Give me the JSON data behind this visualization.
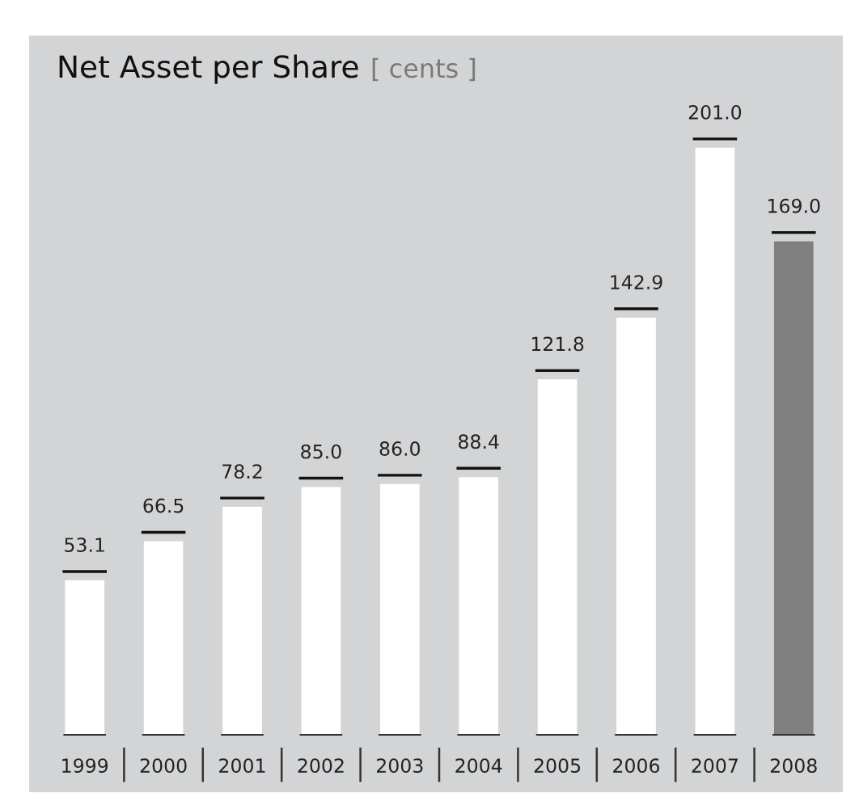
{
  "chart_data": {
    "type": "bar",
    "title": "Net Asset per Share",
    "subtitle": "[ cents ]",
    "categories": [
      "1999",
      "2000",
      "2001",
      "2002",
      "2003",
      "2004",
      "2005",
      "2006",
      "2007",
      "2008"
    ],
    "values": [
      53.1,
      66.5,
      78.2,
      85.0,
      86.0,
      88.4,
      121.8,
      142.9,
      201.0,
      169.0
    ],
    "value_labels": [
      "53.1",
      "66.5",
      "78.2",
      "85.0",
      "86.0",
      "88.4",
      "121.8",
      "142.9",
      "201.0",
      "169.0"
    ],
    "colors": [
      "#ffffff",
      "#ffffff",
      "#ffffff",
      "#ffffff",
      "#ffffff",
      "#ffffff",
      "#ffffff",
      "#ffffff",
      "#ffffff",
      "#808080"
    ],
    "grid": false,
    "legend": false
  }
}
